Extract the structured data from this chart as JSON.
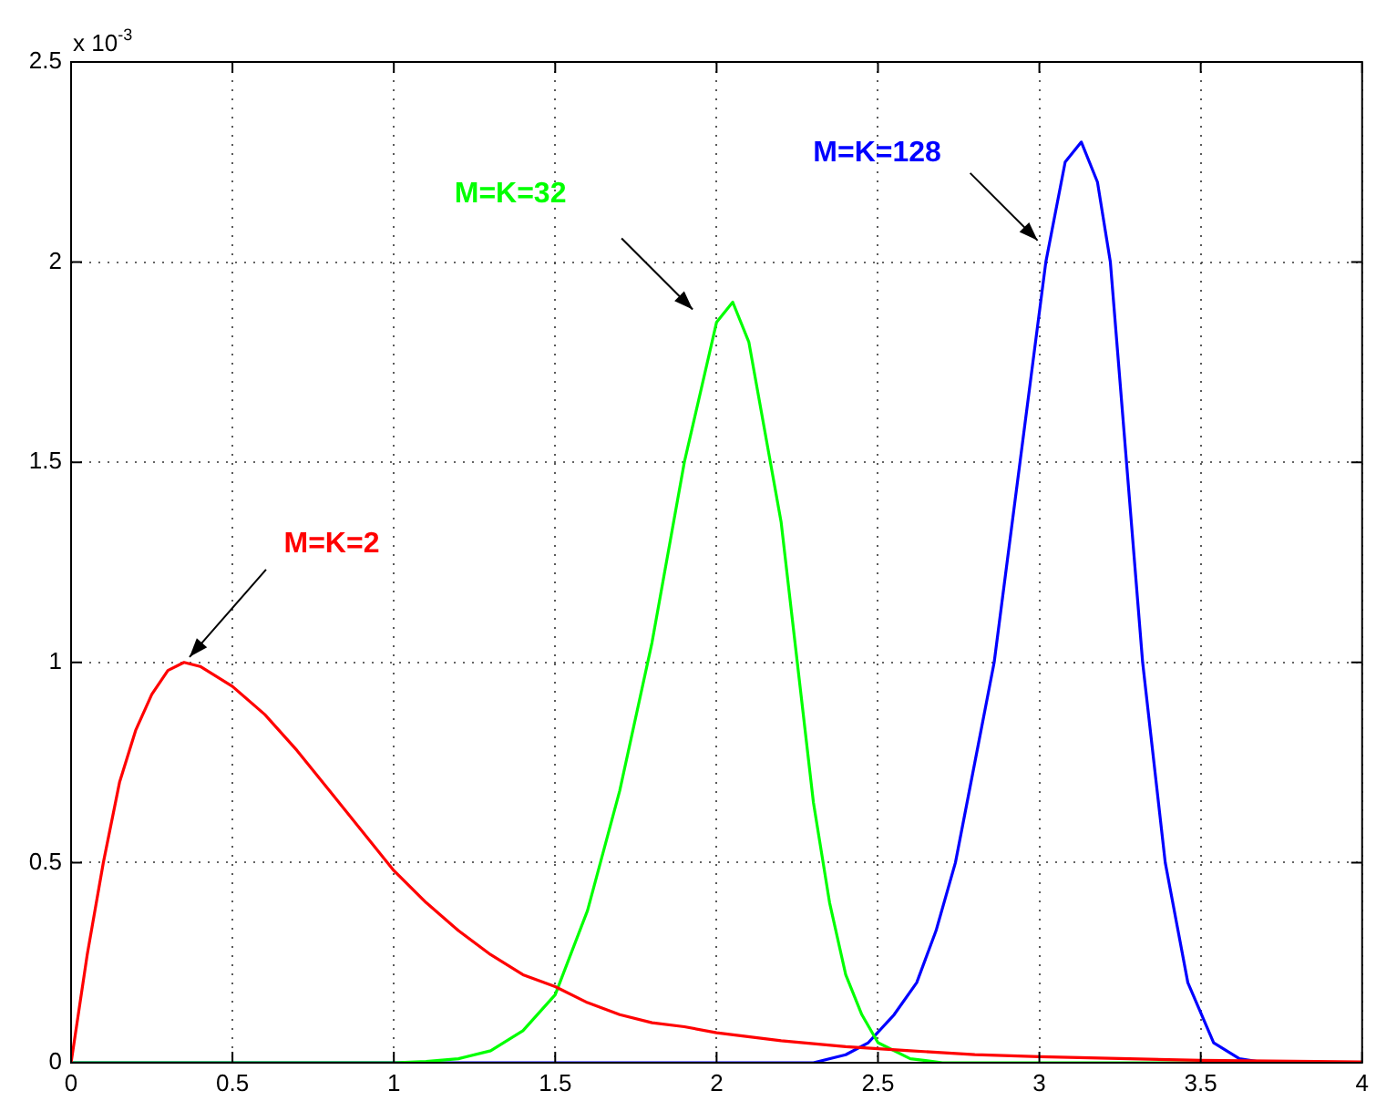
{
  "chart_data": {
    "type": "line",
    "xlim": [
      0,
      4
    ],
    "xticks": [
      0,
      0.5,
      1,
      1.5,
      2,
      2.5,
      3,
      3.5,
      4
    ],
    "ylim": [
      0,
      2.5
    ],
    "yticks": [
      0,
      0.5,
      1,
      1.5,
      2,
      2.5
    ],
    "grid": true,
    "legend": false,
    "marker": "none",
    "line_style": "solid",
    "annotations": [
      "x 10$^{-3}$"
    ],
    "series": [
      {
        "name": "M=K=2",
        "color": "#ff0000",
        "x": [
          0,
          0.05,
          0.1,
          0.15,
          0.2,
          0.25,
          0.3,
          0.35,
          0.4,
          0.5,
          0.6,
          0.7,
          0.8,
          0.9,
          1.0,
          1.1,
          1.2,
          1.3,
          1.4,
          1.5,
          1.6,
          1.7,
          1.8,
          1.9,
          2.0,
          2.2,
          2.4,
          2.6,
          2.8,
          3.0,
          3.5,
          4.0
        ],
        "values": [
          0,
          0.27,
          0.5,
          0.7,
          0.83,
          0.92,
          0.98,
          1.0,
          0.99,
          0.94,
          0.87,
          0.78,
          0.68,
          0.58,
          0.48,
          0.4,
          0.33,
          0.27,
          0.22,
          0.19,
          0.15,
          0.12,
          0.1,
          0.09,
          0.075,
          0.055,
          0.04,
          0.03,
          0.02,
          0.015,
          0.006,
          0.002
        ]
      },
      {
        "name": "M=K=32",
        "color": "#00ff00",
        "x": [
          0,
          1.0,
          1.1,
          1.2,
          1.3,
          1.4,
          1.5,
          1.6,
          1.7,
          1.8,
          1.9,
          2.0,
          2.05,
          2.1,
          2.2,
          2.25,
          2.3,
          2.35,
          2.4,
          2.45,
          2.5,
          2.6,
          2.7,
          4.0
        ],
        "values": [
          0,
          0,
          0.003,
          0.01,
          0.03,
          0.08,
          0.17,
          0.38,
          0.68,
          1.05,
          1.5,
          1.85,
          1.9,
          1.8,
          1.35,
          1.0,
          0.65,
          0.4,
          0.22,
          0.12,
          0.05,
          0.01,
          0,
          0
        ]
      },
      {
        "name": "M=K=128",
        "color": "#0000ff",
        "x": [
          0,
          2.3,
          2.4,
          2.47,
          2.55,
          2.62,
          2.68,
          2.74,
          2.8,
          2.86,
          2.94,
          3.02,
          3.08,
          3.13,
          3.18,
          3.22,
          3.27,
          3.32,
          3.39,
          3.46,
          3.54,
          3.62,
          3.7,
          4.0
        ],
        "values": [
          0,
          0,
          0.02,
          0.05,
          0.12,
          0.2,
          0.33,
          0.5,
          0.75,
          1.0,
          1.5,
          2.0,
          2.25,
          2.3,
          2.2,
          2.0,
          1.5,
          1.0,
          0.5,
          0.2,
          0.05,
          0.01,
          0,
          0
        ]
      }
    ]
  }
}
